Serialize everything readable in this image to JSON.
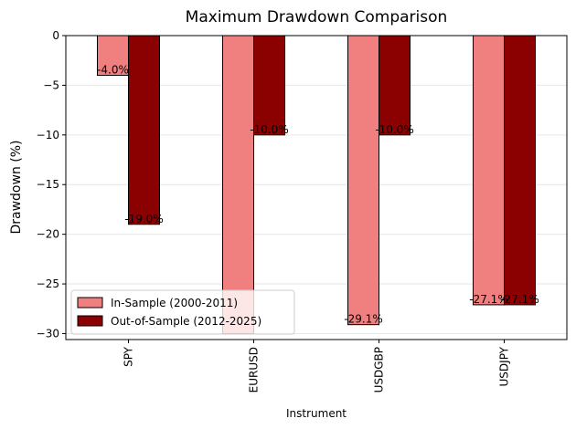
{
  "chart_data": {
    "type": "bar",
    "title": "Maximum Drawdown Comparison",
    "xlabel": "Instrument",
    "ylabel": "Drawdown (%)",
    "categories": [
      "SPY",
      "EURUSD",
      "USDGBP",
      "USDJPY"
    ],
    "series": [
      {
        "name": "In-Sample (2000-2011)",
        "values": [
          -4.0,
          -30.0,
          -29.1,
          -27.1
        ],
        "labels": [
          "-4.0%",
          "",
          "-29.1%",
          "-27.1%"
        ],
        "color": "#f08080"
      },
      {
        "name": "Out-of-Sample (2012-2025)",
        "values": [
          -19.0,
          -10.0,
          -10.0,
          -27.1
        ],
        "labels": [
          "-19.0%",
          "-10.0%",
          "-10.0%",
          "-27.1%"
        ],
        "color": "#8b0000"
      }
    ],
    "ylim": [
      -30.6,
      0
    ],
    "yticks": [
      0,
      -5,
      -10,
      -15,
      -20,
      -25,
      -30
    ],
    "ytick_labels": [
      "0",
      "−5",
      "−10",
      "−15",
      "−20",
      "−25",
      "−30"
    ],
    "grid": "y",
    "legend": "lower-left",
    "tick_rotation": 90
  }
}
